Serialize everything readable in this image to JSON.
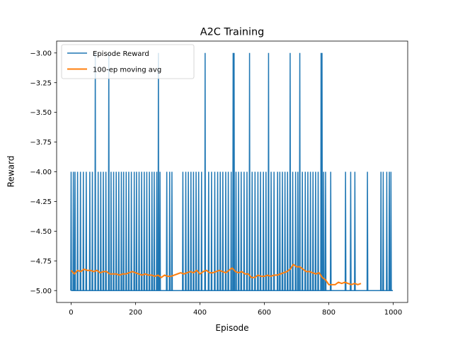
{
  "chart_data": {
    "type": "line",
    "title": "A2C Training",
    "xlabel": "Episode",
    "ylabel": "Reward",
    "xlim": [
      -45,
      1045
    ],
    "ylim": [
      -5.1,
      -2.9
    ],
    "x_ticks": [
      0,
      200,
      400,
      600,
      800,
      1000
    ],
    "x_tick_labels": [
      "0",
      "200",
      "400",
      "600",
      "800",
      "1000"
    ],
    "y_ticks": [
      -3.0,
      -3.25,
      -3.5,
      -3.75,
      -4.0,
      -4.25,
      -4.5,
      -4.75,
      -5.0
    ],
    "y_tick_labels": [
      "−3.00",
      "−3.25",
      "−3.50",
      "−3.75",
      "−4.00",
      "−4.25",
      "−4.50",
      "−4.75",
      "−5.00"
    ],
    "grid": false,
    "legend_position": "top-left",
    "series": [
      {
        "name": "Episode Reward",
        "color": "#1f77b4",
        "baseline": -5.0,
        "spikes": [
          {
            "x": 0,
            "y": -4.0
          },
          {
            "x": 7,
            "y": -4.0
          },
          {
            "x": 12,
            "y": -4.0
          },
          {
            "x": 20,
            "y": -4.0
          },
          {
            "x": 29,
            "y": -4.0
          },
          {
            "x": 38,
            "y": -4.0
          },
          {
            "x": 47,
            "y": -4.0
          },
          {
            "x": 58,
            "y": -4.0
          },
          {
            "x": 66,
            "y": -4.0
          },
          {
            "x": 75,
            "y": -3.0
          },
          {
            "x": 84,
            "y": -4.0
          },
          {
            "x": 92,
            "y": -4.0
          },
          {
            "x": 100,
            "y": -4.0
          },
          {
            "x": 108,
            "y": -4.0
          },
          {
            "x": 117,
            "y": -3.0
          },
          {
            "x": 124,
            "y": -4.0
          },
          {
            "x": 132,
            "y": -4.0
          },
          {
            "x": 140,
            "y": -4.0
          },
          {
            "x": 148,
            "y": -4.0
          },
          {
            "x": 156,
            "y": -4.0
          },
          {
            "x": 163,
            "y": -4.0
          },
          {
            "x": 171,
            "y": -4.0
          },
          {
            "x": 179,
            "y": -4.0
          },
          {
            "x": 187,
            "y": -4.0
          },
          {
            "x": 196,
            "y": -4.0
          },
          {
            "x": 203,
            "y": -4.0
          },
          {
            "x": 211,
            "y": -4.0
          },
          {
            "x": 219,
            "y": -4.0
          },
          {
            "x": 227,
            "y": -4.0
          },
          {
            "x": 235,
            "y": -4.0
          },
          {
            "x": 243,
            "y": -4.0
          },
          {
            "x": 251,
            "y": -4.0
          },
          {
            "x": 258,
            "y": -4.0
          },
          {
            "x": 266,
            "y": -4.0
          },
          {
            "x": 271,
            "y": -3.0
          },
          {
            "x": 276,
            "y": -4.0
          },
          {
            "x": 297,
            "y": -4.0
          },
          {
            "x": 306,
            "y": -4.0
          },
          {
            "x": 313,
            "y": -4.0
          },
          {
            "x": 347,
            "y": -4.0
          },
          {
            "x": 356,
            "y": -4.0
          },
          {
            "x": 364,
            "y": -4.0
          },
          {
            "x": 372,
            "y": -4.0
          },
          {
            "x": 380,
            "y": -4.0
          },
          {
            "x": 388,
            "y": -4.0
          },
          {
            "x": 396,
            "y": -4.0
          },
          {
            "x": 405,
            "y": -4.0
          },
          {
            "x": 416,
            "y": -3.0
          },
          {
            "x": 427,
            "y": -4.0
          },
          {
            "x": 436,
            "y": -4.0
          },
          {
            "x": 446,
            "y": -4.0
          },
          {
            "x": 455,
            "y": -4.0
          },
          {
            "x": 463,
            "y": -4.0
          },
          {
            "x": 471,
            "y": -4.0
          },
          {
            "x": 480,
            "y": -4.0
          },
          {
            "x": 488,
            "y": -4.0
          },
          {
            "x": 497,
            "y": -4.0
          },
          {
            "x": 503,
            "y": -3.0
          },
          {
            "x": 506,
            "y": -3.0
          },
          {
            "x": 512,
            "y": -4.0
          },
          {
            "x": 520,
            "y": -4.0
          },
          {
            "x": 528,
            "y": -4.0
          },
          {
            "x": 537,
            "y": -4.0
          },
          {
            "x": 546,
            "y": -4.0
          },
          {
            "x": 554,
            "y": -3.0
          },
          {
            "x": 562,
            "y": -4.0
          },
          {
            "x": 571,
            "y": -4.0
          },
          {
            "x": 580,
            "y": -4.0
          },
          {
            "x": 588,
            "y": -4.0
          },
          {
            "x": 597,
            "y": -4.0
          },
          {
            "x": 605,
            "y": -4.0
          },
          {
            "x": 613,
            "y": -3.0
          },
          {
            "x": 621,
            "y": -4.0
          },
          {
            "x": 630,
            "y": -4.0
          },
          {
            "x": 641,
            "y": -4.0
          },
          {
            "x": 648,
            "y": -4.0
          },
          {
            "x": 656,
            "y": -4.0
          },
          {
            "x": 664,
            "y": -4.0
          },
          {
            "x": 672,
            "y": -4.0
          },
          {
            "x": 680,
            "y": -3.0
          },
          {
            "x": 688,
            "y": -4.0
          },
          {
            "x": 697,
            "y": -4.0
          },
          {
            "x": 704,
            "y": -4.0
          },
          {
            "x": 710,
            "y": -3.0
          },
          {
            "x": 718,
            "y": -4.0
          },
          {
            "x": 727,
            "y": -4.0
          },
          {
            "x": 735,
            "y": -4.0
          },
          {
            "x": 743,
            "y": -4.0
          },
          {
            "x": 751,
            "y": -4.0
          },
          {
            "x": 759,
            "y": -4.0
          },
          {
            "x": 767,
            "y": -4.0
          },
          {
            "x": 776,
            "y": -3.0
          },
          {
            "x": 779,
            "y": -3.0
          },
          {
            "x": 784,
            "y": -4.0
          },
          {
            "x": 790,
            "y": -4.0
          },
          {
            "x": 806,
            "y": -4.0
          },
          {
            "x": 852,
            "y": -4.0
          },
          {
            "x": 868,
            "y": -4.0
          },
          {
            "x": 881,
            "y": -4.0
          },
          {
            "x": 920,
            "y": -4.0
          },
          {
            "x": 962,
            "y": -4.0
          },
          {
            "x": 969,
            "y": -4.0
          },
          {
            "x": 980,
            "y": -4.0
          },
          {
            "x": 988,
            "y": -4.0
          },
          {
            "x": 993,
            "y": -4.0
          }
        ]
      },
      {
        "name": "100-ep moving avg",
        "color": "#ff7f0e",
        "x": [
          0,
          10,
          20,
          30,
          40,
          50,
          60,
          70,
          80,
          90,
          100,
          110,
          120,
          130,
          140,
          150,
          160,
          170,
          180,
          190,
          200,
          210,
          220,
          230,
          240,
          250,
          260,
          270,
          280,
          290,
          300,
          310,
          320,
          330,
          340,
          350,
          360,
          370,
          380,
          390,
          400,
          410,
          420,
          430,
          440,
          450,
          460,
          470,
          480,
          490,
          500,
          510,
          520,
          530,
          540,
          550,
          560,
          570,
          580,
          590,
          600,
          610,
          620,
          630,
          640,
          650,
          660,
          670,
          680,
          690,
          700,
          710,
          720,
          730,
          740,
          750,
          760,
          770,
          780,
          790,
          800,
          810,
          820,
          830,
          840,
          850,
          860,
          870,
          880,
          890,
          900
        ],
        "y": [
          -4.83,
          -4.86,
          -4.83,
          -4.84,
          -4.82,
          -4.83,
          -4.83,
          -4.84,
          -4.83,
          -4.85,
          -4.84,
          -4.84,
          -4.86,
          -4.86,
          -4.86,
          -4.87,
          -4.86,
          -4.86,
          -4.85,
          -4.84,
          -4.85,
          -4.86,
          -4.87,
          -4.86,
          -4.87,
          -4.87,
          -4.88,
          -4.87,
          -4.89,
          -4.87,
          -4.88,
          -4.88,
          -4.87,
          -4.86,
          -4.85,
          -4.86,
          -4.85,
          -4.84,
          -4.85,
          -4.83,
          -4.86,
          -4.84,
          -4.83,
          -4.85,
          -4.85,
          -4.84,
          -4.83,
          -4.84,
          -4.85,
          -4.83,
          -4.81,
          -4.84,
          -4.85,
          -4.84,
          -4.86,
          -4.86,
          -4.89,
          -4.89,
          -4.87,
          -4.88,
          -4.88,
          -4.87,
          -4.88,
          -4.87,
          -4.87,
          -4.86,
          -4.85,
          -4.84,
          -4.82,
          -4.78,
          -4.8,
          -4.8,
          -4.82,
          -4.84,
          -4.84,
          -4.85,
          -4.86,
          -4.85,
          -4.89,
          -4.91,
          -4.95,
          -4.95,
          -4.95,
          -4.93,
          -4.94,
          -4.93,
          -4.94,
          -4.95,
          -4.94,
          -4.95,
          -4.94
        ]
      }
    ]
  }
}
